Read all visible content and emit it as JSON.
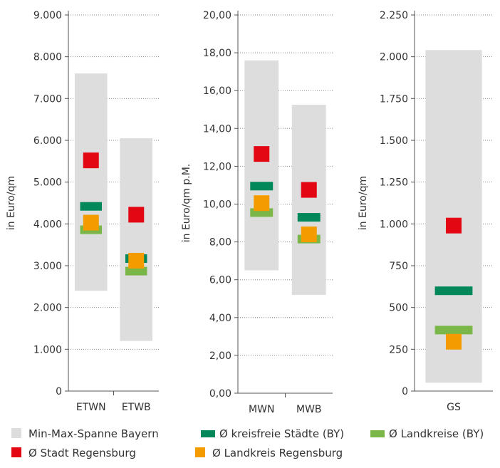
{
  "chart_data": [
    {
      "type": "range-marker",
      "ylabel": "in Euro/qm",
      "ylim": [
        0,
        9000
      ],
      "yticks": [
        0,
        1000,
        2000,
        3000,
        4000,
        5000,
        6000,
        7000,
        8000,
        9000
      ],
      "yticklabels": [
        "0",
        "1.000",
        "2.000",
        "3.000",
        "4.000",
        "5.000",
        "6.000",
        "7.000",
        "8.000",
        "9.000"
      ],
      "categories": [
        "ETWN",
        "ETWB"
      ],
      "range": [
        {
          "min": 2400,
          "max": 7600
        },
        {
          "min": 1200,
          "max": 6050
        }
      ],
      "markers": {
        "kreisfreie_staedte": [
          4420,
          3170
        ],
        "landkreise": [
          3860,
          2870
        ],
        "stadt_regensburg": [
          5520,
          4220
        ],
        "landkreis_regensburg": [
          4030,
          3120
        ]
      }
    },
    {
      "type": "range-marker",
      "ylabel": "in Euro/qm p.M.",
      "ylim": [
        0,
        20
      ],
      "yticks": [
        0,
        2,
        4,
        6,
        8,
        10,
        12,
        14,
        16,
        18,
        20
      ],
      "yticklabels": [
        "0,00",
        "2,00",
        "4,00",
        "6,00",
        "8,00",
        "10,00",
        "12,00",
        "14,00",
        "16,00",
        "18,00",
        "20,00"
      ],
      "categories": [
        "MWN",
        "MWB"
      ],
      "range": [
        {
          "min": 6.5,
          "max": 17.6
        },
        {
          "min": 5.2,
          "max": 15.25
        }
      ],
      "markers": {
        "kreisfreie_staedte": [
          10.95,
          9.3
        ],
        "landkreise": [
          9.55,
          8.15
        ],
        "stadt_regensburg": [
          12.65,
          10.75
        ],
        "landkreis_regensburg": [
          10.05,
          8.4
        ]
      }
    },
    {
      "type": "range-marker",
      "ylabel": "in Euro/qm",
      "ylim": [
        0,
        2250
      ],
      "yticks": [
        0,
        250,
        500,
        750,
        1000,
        1250,
        1500,
        1750,
        2000,
        2250
      ],
      "yticklabels": [
        "0",
        "250",
        "500",
        "750",
        "1.000",
        "1.250",
        "1.500",
        "1.750",
        "2.000",
        "2.250"
      ],
      "categories": [
        "GS"
      ],
      "range": [
        {
          "min": 50,
          "max": 2040
        }
      ],
      "markers": {
        "kreisfreie_staedte": [
          600
        ],
        "landkreise": [
          365
        ],
        "stadt_regensburg": [
          990
        ],
        "landkreis_regensburg": [
          295
        ]
      }
    }
  ],
  "legend": [
    {
      "key": "range",
      "label": "Min-Max-Spanne Bayern",
      "color": "#dddddd"
    },
    {
      "key": "kreisfreie_staedte",
      "label": "Ø kreisfreie Städte (BY)",
      "color": "#00875a"
    },
    {
      "key": "landkreise",
      "label": "Ø Landkreise (BY)",
      "color": "#7ab648"
    },
    {
      "key": "stadt_regensburg",
      "label": "Ø Stadt Regensburg",
      "color": "#e30613"
    },
    {
      "key": "landkreis_regensburg",
      "label": "Ø Landkreis Regensburg",
      "color": "#f49b00"
    }
  ]
}
